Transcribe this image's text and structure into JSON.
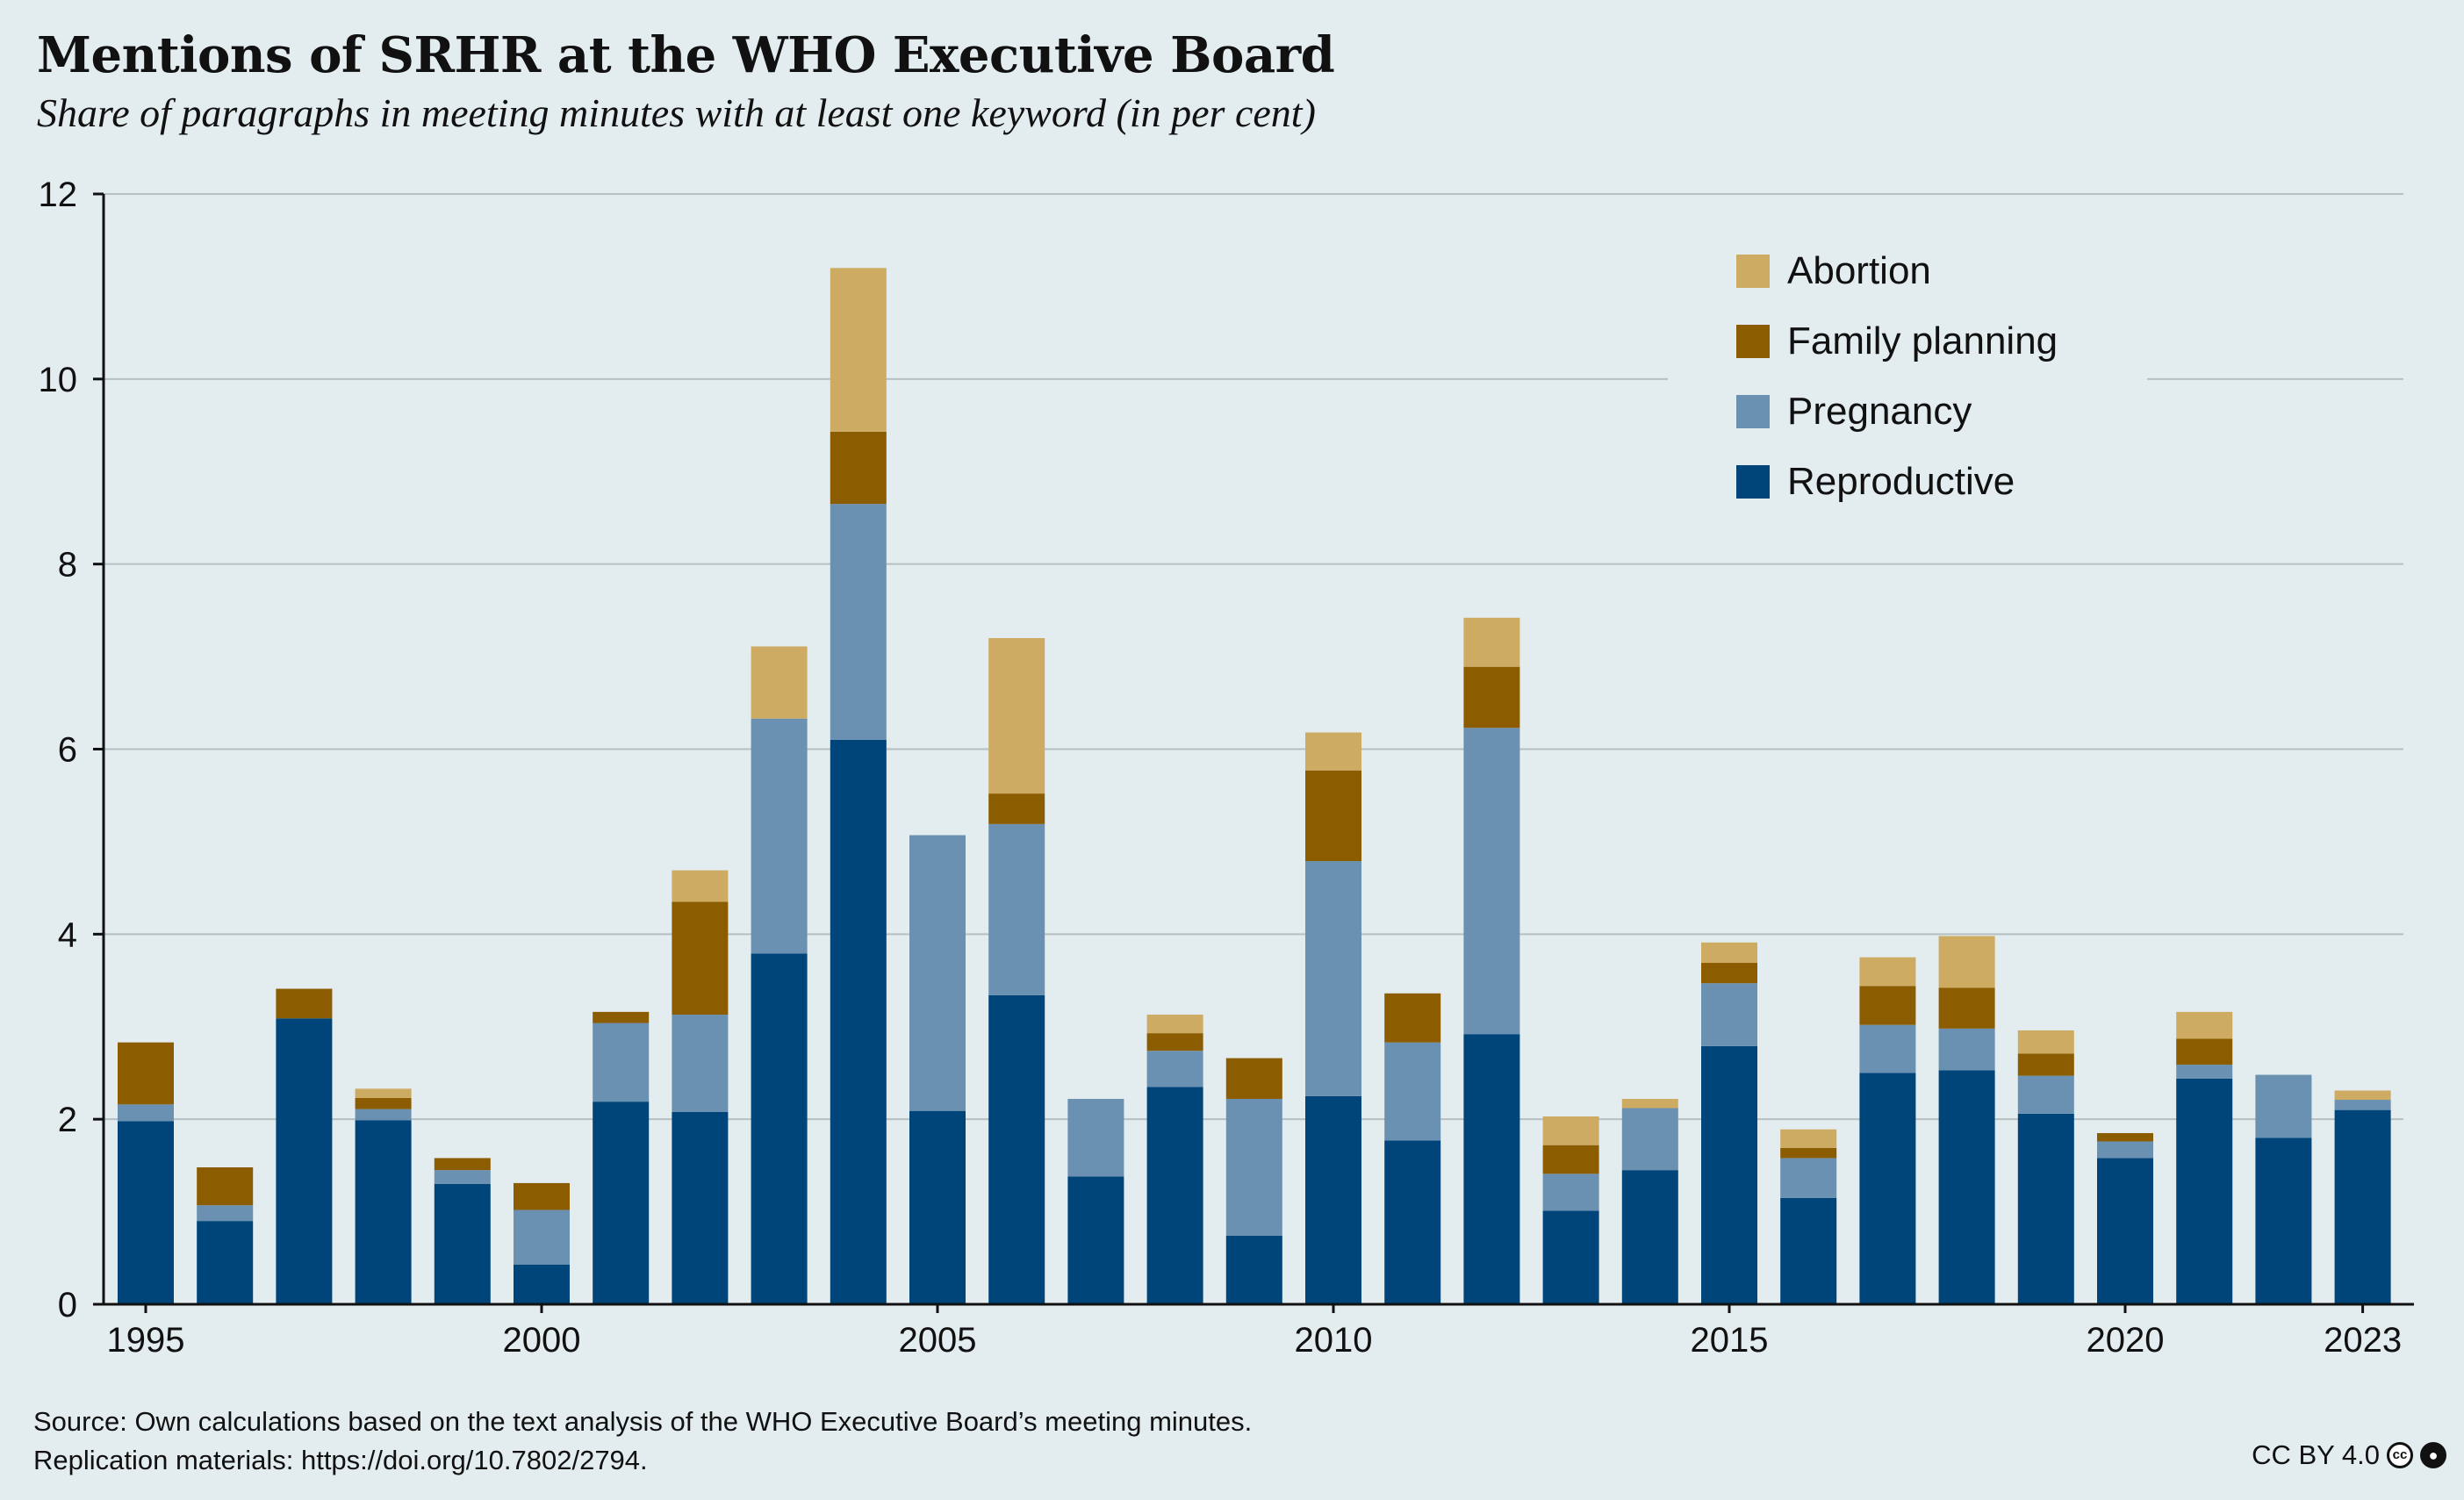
{
  "title": "Mentions of SRHR at the WHO Executive Board",
  "subtitle": "Share of paragraphs in meeting minutes with at least one keyword (in per cent)",
  "source_line1": "Source: Own calculations based on the text analysis of the WHO Executive Board’s meeting minutes.",
  "source_line2": "Replication materials: https://doi.org/10.7802/2794.",
  "license": "CC BY 4.0",
  "license_icons": [
    "cc-icon",
    "by-icon"
  ],
  "colors": {
    "background": "#e3ecee",
    "grid": "#b6c0c3",
    "axis": "#111111"
  },
  "chart_data": {
    "type": "bar",
    "stacked": true,
    "categories": [
      "1995",
      "1996",
      "1997",
      "1998",
      "1999",
      "2000",
      "2001",
      "2002",
      "2003",
      "2004",
      "2005",
      "2006",
      "2007",
      "2008",
      "2009",
      "2010",
      "2011",
      "2012",
      "2013",
      "2014",
      "2015",
      "2016",
      "2017",
      "2018",
      "2019",
      "2020",
      "2021",
      "2022",
      "2023"
    ],
    "x_tick_labels": [
      "1995",
      "2000",
      "2005",
      "2010",
      "2015",
      "2020",
      "2023"
    ],
    "ylim": [
      0,
      12
    ],
    "y_ticks": [
      0,
      2,
      4,
      6,
      8,
      10,
      12
    ],
    "grid": true,
    "legend_position": "top-right",
    "series": [
      {
        "name": "Reproductive",
        "color": "#00457a",
        "values": [
          1.98,
          0.9,
          3.09,
          1.99,
          1.3,
          0.43,
          2.19,
          2.08,
          3.79,
          6.1,
          2.09,
          3.34,
          1.38,
          2.35,
          0.74,
          2.25,
          1.77,
          2.92,
          1.01,
          1.45,
          2.79,
          1.15,
          2.5,
          2.53,
          2.06,
          1.58,
          2.44,
          1.8,
          2.1
        ]
      },
      {
        "name": "Pregnancy",
        "color": "#6a91b2",
        "values": [
          0.18,
          0.17,
          0,
          0.12,
          0.15,
          0.59,
          0.85,
          1.05,
          2.54,
          2.55,
          2.98,
          1.85,
          0.84,
          0.39,
          1.48,
          2.54,
          1.06,
          3.31,
          0.4,
          0.67,
          0.68,
          0.43,
          0.52,
          0.45,
          0.41,
          0.18,
          0.15,
          0.68,
          0.11
        ]
      },
      {
        "name": "Family planning",
        "color": "#8c5c00",
        "values": [
          0.67,
          0.41,
          0.32,
          0.12,
          0.13,
          0.29,
          0.12,
          1.22,
          0,
          0.78,
          0,
          0.33,
          0,
          0.19,
          0.44,
          0.98,
          0.53,
          0.66,
          0.31,
          0,
          0.22,
          0.11,
          0.42,
          0.44,
          0.24,
          0.09,
          0.28,
          0,
          0
        ]
      },
      {
        "name": "Abortion",
        "color": "#cdab63",
        "values": [
          0,
          0,
          0,
          0.1,
          0,
          0,
          0,
          0.34,
          0.78,
          1.77,
          0,
          1.68,
          0,
          0.2,
          0,
          0.41,
          0,
          0.53,
          0.31,
          0.1,
          0.22,
          0.2,
          0.31,
          0.56,
          0.25,
          0,
          0.29,
          0,
          0.1
        ]
      }
    ],
    "legend_order": [
      "Abortion",
      "Family planning",
      "Pregnancy",
      "Reproductive"
    ]
  }
}
